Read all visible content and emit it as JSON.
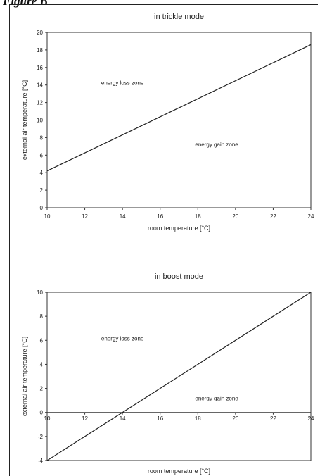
{
  "figure_label": "Figure B",
  "chart_data": [
    {
      "type": "line",
      "title": "in trickle mode",
      "xlabel": "room temperature [°C]",
      "ylabel": "external air temperature [°C]",
      "xlim": [
        10,
        24
      ],
      "ylim": [
        0,
        20
      ],
      "x_ticks": [
        "10",
        "12",
        "14",
        "16",
        "18",
        "20",
        "22",
        "24"
      ],
      "y_ticks": [
        "0",
        "2",
        "4",
        "6",
        "8",
        "10",
        "12",
        "14",
        "16",
        "18",
        "20"
      ],
      "grid": false,
      "series": [
        {
          "x": [
            10,
            24
          ],
          "y": [
            4.2,
            18.6
          ]
        }
      ],
      "annotations": [
        {
          "text": "energy loss zone",
          "x": 14,
          "y": 14
        },
        {
          "text": "energy gain zone",
          "x": 19,
          "y": 7
        }
      ]
    },
    {
      "type": "line",
      "title": "in boost mode",
      "xlabel": "room temperature [°C]",
      "ylabel": "external air temperature [°C]",
      "xlim": [
        10,
        24
      ],
      "ylim": [
        -4,
        10
      ],
      "x_ticks": [
        "10",
        "12",
        "14",
        "16",
        "18",
        "20",
        "22",
        "24"
      ],
      "y_ticks": [
        "-4",
        "-2",
        "0",
        "2",
        "4",
        "6",
        "8",
        "10"
      ],
      "grid": false,
      "series": [
        {
          "x": [
            10,
            24
          ],
          "y": [
            -4,
            10
          ]
        }
      ],
      "annotations": [
        {
          "text": "energy loss zone",
          "x": 14,
          "y": 6
        },
        {
          "text": "energy gain zone",
          "x": 19,
          "y": 1
        }
      ]
    }
  ]
}
